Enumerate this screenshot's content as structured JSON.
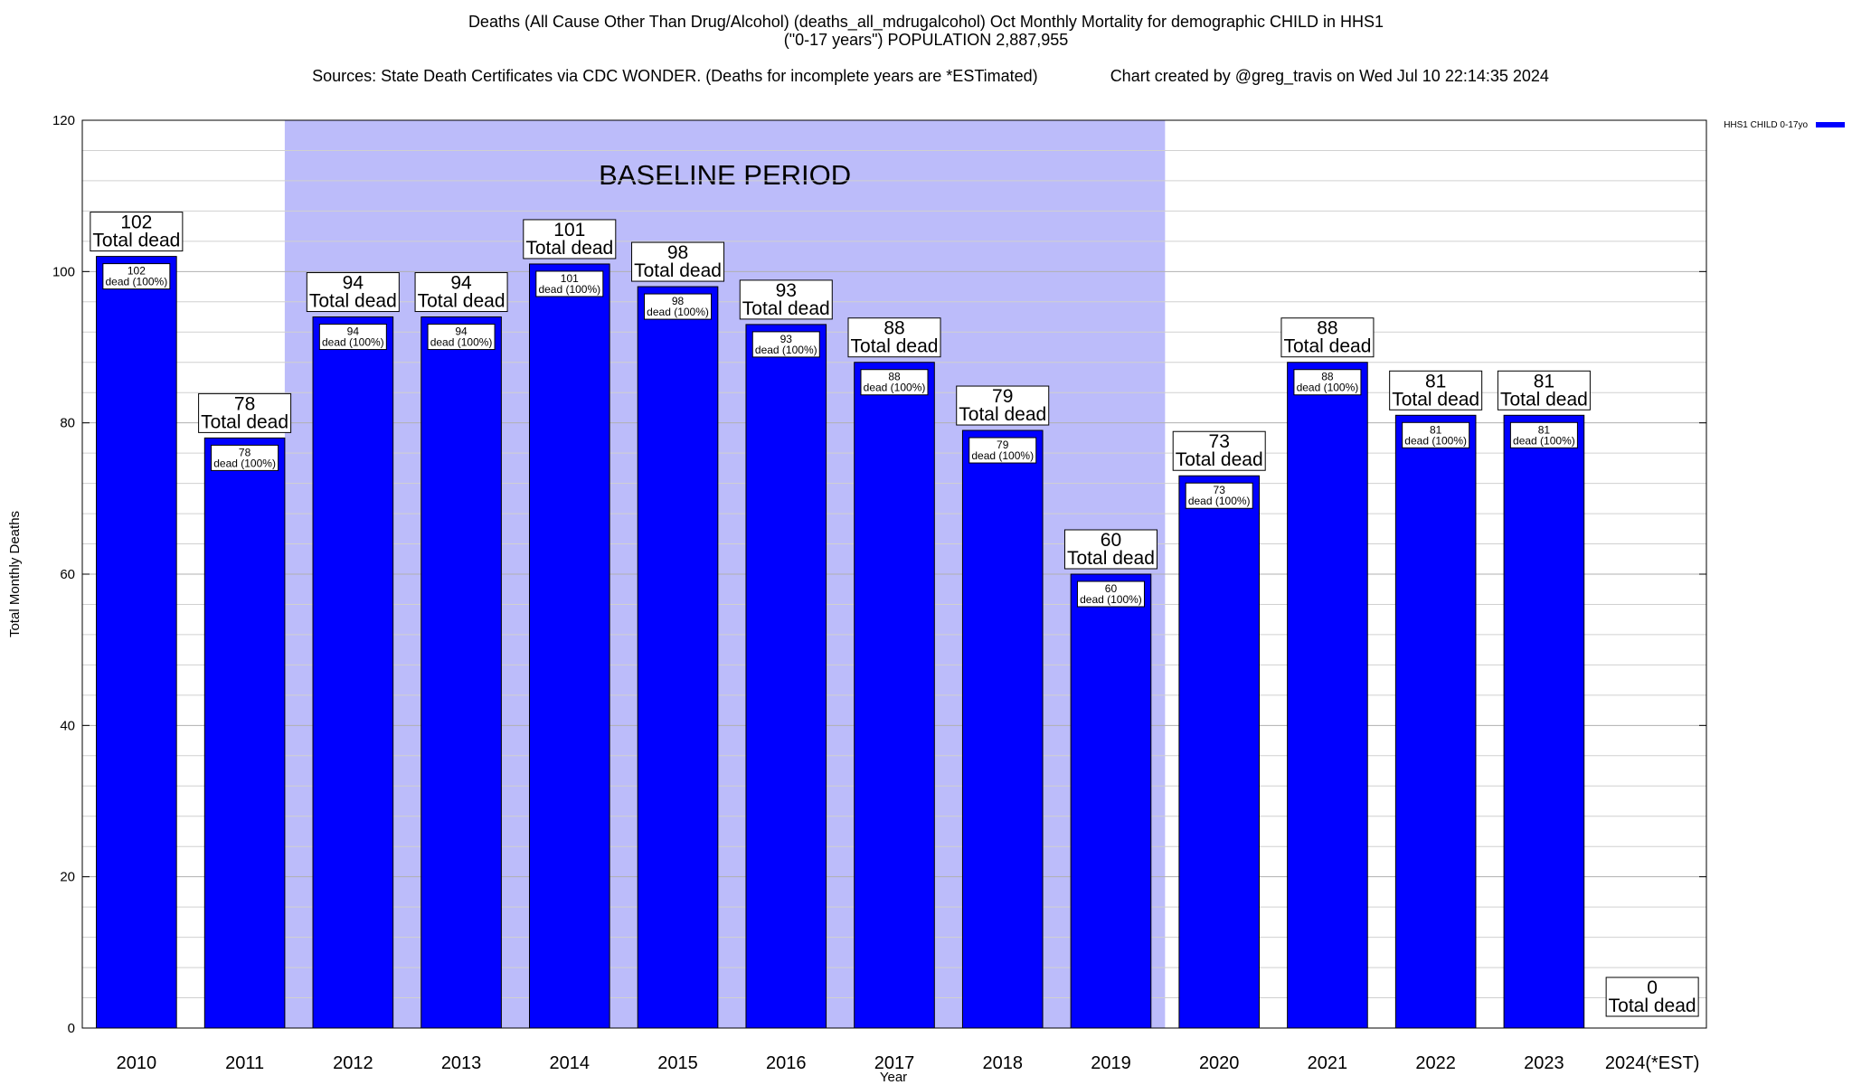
{
  "title": {
    "line1": "Deaths (All Cause Other Than Drug/Alcohol) (deaths_all_mdrugalcohol) Oct Monthly Mortality for demographic CHILD in HHS1",
    "line2": "(\"0-17 years\") POPULATION 2,887,955",
    "line3_left": "Sources: State Death Certificates via CDC WONDER. (Deaths for incomplete years are *ESTimated)",
    "line3_right": "Chart created by @greg_travis on Wed Jul 10 22:14:35 2024"
  },
  "chart_data": {
    "type": "bar",
    "xlabel": "Year",
    "ylabel": "Total Monthly Deaths",
    "ylim": [
      0,
      120
    ],
    "yticks": [
      0,
      20,
      40,
      60,
      80,
      100,
      120
    ],
    "grid": true,
    "categories": [
      "2010",
      "2011",
      "2012",
      "2013",
      "2014",
      "2015",
      "2016",
      "2017",
      "2018",
      "2019",
      "2020",
      "2021",
      "2022",
      "2023",
      "2024(*EST)"
    ],
    "series": [
      {
        "name": "HHS1 CHILD 0-17yo",
        "color": "#0000ff",
        "values": [
          102,
          78,
          94,
          94,
          101,
          98,
          93,
          88,
          79,
          60,
          73,
          88,
          81,
          81,
          0
        ]
      }
    ],
    "top_label_suffix": "Total dead",
    "inner_label_suffix": "dead (100%)",
    "baseline": {
      "label": "BASELINE PERIOD",
      "from": "2012",
      "to": "2019",
      "color": "#bcbcfa"
    },
    "legend": {
      "placement": "top-right"
    }
  }
}
